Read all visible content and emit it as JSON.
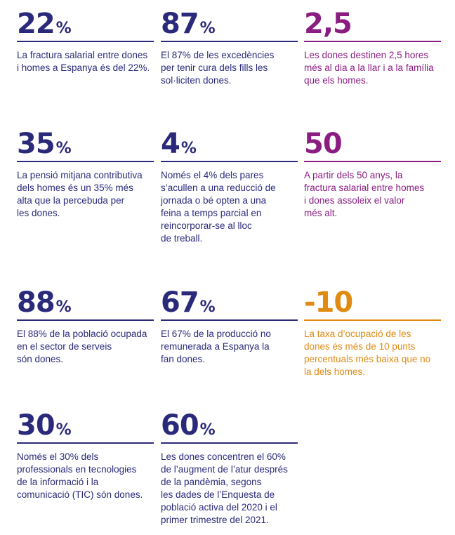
{
  "colors": {
    "navy": "#2b2a7a",
    "purple": "#8a1d82",
    "orange": "#e08a12"
  },
  "stats": [
    {
      "value": "22",
      "unit": "%",
      "color": "navy",
      "text": "La fractura salarial entre dones\ni homes a Espanya és del 22%."
    },
    {
      "value": "87",
      "unit": "%",
      "color": "navy",
      "text": "El 87% de les excedències\nper tenir cura dels fills les\nsol·liciten dones."
    },
    {
      "value": "2,5",
      "unit": "",
      "color": "purple",
      "text": "Les dones destinen 2,5 hores\nmés al dia a la llar i a la família\nque els homes."
    },
    {
      "value": "35",
      "unit": "%",
      "color": "navy",
      "text": "La pensió mitjana contributiva\ndels homes és un 35% més\nalta que la percebuda per\nles dones."
    },
    {
      "value": "4",
      "unit": "%",
      "color": "navy",
      "text": "Només el 4% dels pares\ns’acullen a una reducció de\njornada o bé opten a una\nfeina a temps parcial en\nreincorporar-se al lloc\nde treball."
    },
    {
      "value": "50",
      "unit": "",
      "color": "purple",
      "text": "A partir dels 50 anys, la\nfractura salarial entre homes\ni dones assoleix el valor\nmés alt."
    },
    {
      "value": "88",
      "unit": "%",
      "color": "navy",
      "text": "El 88% de la població ocupada\nen el sector de serveis\nsón dones."
    },
    {
      "value": "67",
      "unit": "%",
      "color": "navy",
      "text": "El 67% de la producció no\nremunerada a Espanya la\nfan dones."
    },
    {
      "value": "-10",
      "unit": "",
      "color": "orange",
      "text": "La taxa d’ocupació de les\ndones és més de 10 punts\npercentuals més baixa que no\nla dels homes."
    },
    {
      "value": "30",
      "unit": "%",
      "color": "navy",
      "text": "Només el 30% dels\nprofessionals en tecnologies\nde la informació i la\ncomunicació (TIC) són dones."
    },
    {
      "value": "60",
      "unit": "%",
      "color": "navy",
      "text": "Les dones concentren el 60%\nde l’augment de l’atur després\nde la pandèmia, segons\nles dades de l’Enquesta de\npoblació activa del 2020 i el\nprimer trimestre del 2021."
    }
  ]
}
